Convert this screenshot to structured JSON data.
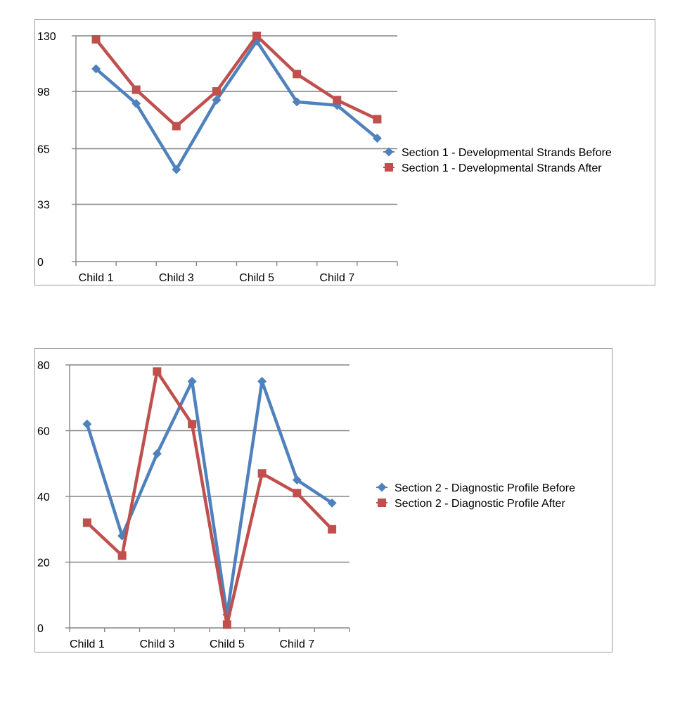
{
  "colors": {
    "before": "#4F81BD",
    "after": "#C0504D",
    "gridline": "#868686",
    "axis": "#868686"
  },
  "chart_data": [
    {
      "type": "line",
      "title": "",
      "xlabel": "",
      "ylabel": "",
      "categories": [
        "Child 1",
        "Child 2",
        "Child 3",
        "Child 4",
        "Child 5",
        "Child 6",
        "Child 7",
        "Child 8"
      ],
      "x_tick_labels": [
        "Child 1",
        "Child 3",
        "Child 5",
        "Child 7"
      ],
      "y_tick_labels": [
        "0",
        "33",
        "65",
        "98",
        "130"
      ],
      "ylim": [
        0,
        130
      ],
      "grid": true,
      "legend_position": "right",
      "series": [
        {
          "name": "Section 1 - Developmental Strands Before",
          "marker": "diamond",
          "color": "#4F81BD",
          "values": [
            111,
            91,
            53,
            93,
            127,
            92,
            90,
            71
          ]
        },
        {
          "name": "Section 1 - Developmental Strands After",
          "marker": "square",
          "color": "#C0504D",
          "values": [
            128,
            99,
            78,
            98,
            130,
            108,
            93,
            82
          ]
        }
      ]
    },
    {
      "type": "line",
      "title": "",
      "xlabel": "",
      "ylabel": "",
      "categories": [
        "Child 1",
        "Child 2",
        "Child 3",
        "Child 4",
        "Child 5",
        "Child 6",
        "Child 7",
        "Child 8"
      ],
      "x_tick_labels": [
        "Child 1",
        "Child 3",
        "Child 5",
        "Child 7"
      ],
      "y_tick_labels": [
        "0",
        "20",
        "40",
        "60",
        "80"
      ],
      "ylim": [
        0,
        80
      ],
      "grid": true,
      "legend_position": "right",
      "series": [
        {
          "name": "Section 2 - Diagnostic Profile Before",
          "marker": "diamond",
          "color": "#4F81BD",
          "values": [
            62,
            28,
            53,
            75,
            4,
            75,
            45,
            38
          ]
        },
        {
          "name": "Section 2 - Diagnostic Profile After",
          "marker": "square",
          "color": "#C0504D",
          "values": [
            32,
            22,
            78,
            62,
            1,
            47,
            41,
            30
          ]
        }
      ]
    }
  ]
}
